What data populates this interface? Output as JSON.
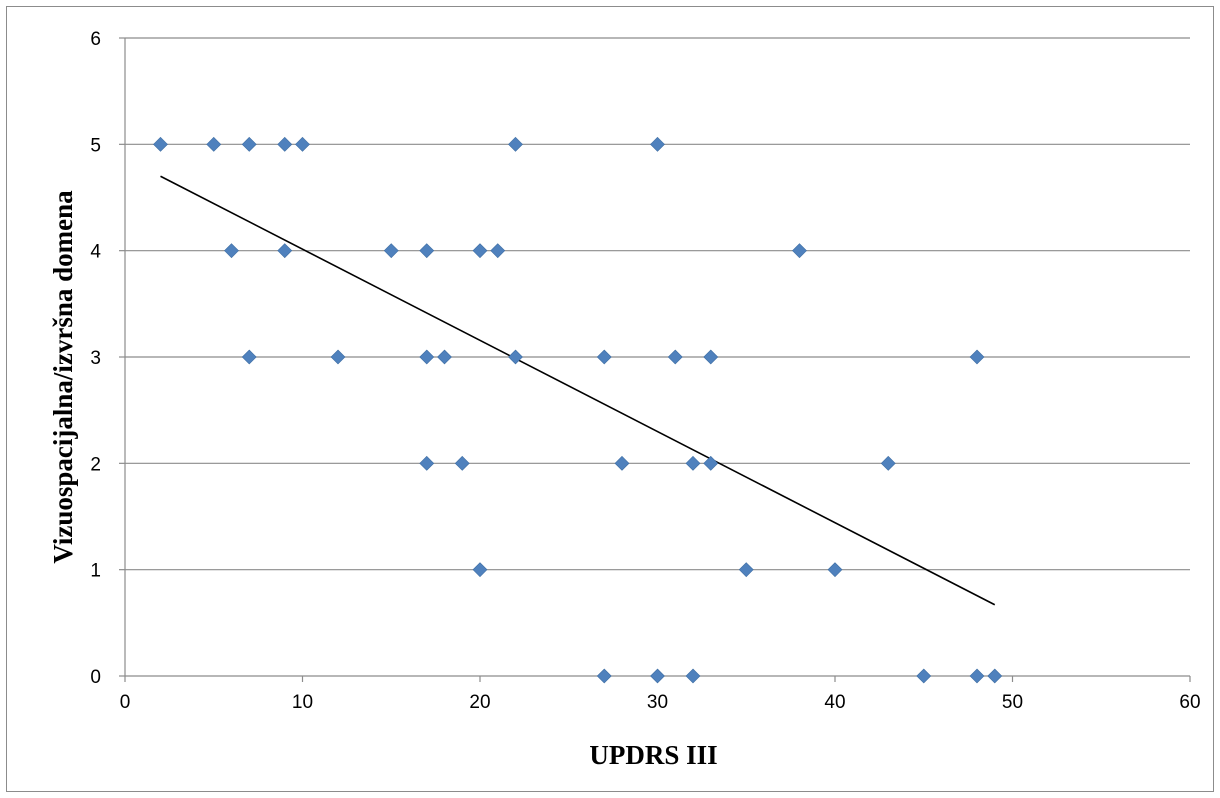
{
  "chart_data": {
    "type": "scatter",
    "title": "",
    "xlabel": "UPDRS III",
    "ylabel": "Vizuospacijalna/izvršna domena",
    "xlim": [
      0,
      60
    ],
    "ylim": [
      0,
      6
    ],
    "x_ticks": [
      "0",
      "10",
      "20",
      "30",
      "40",
      "50",
      "60"
    ],
    "y_ticks": [
      "0",
      "1",
      "2",
      "3",
      "4",
      "5",
      "6"
    ],
    "grid": "horizontal",
    "legend": "none",
    "marker_color": "#4f81bd",
    "trendline_color": "#000000",
    "trendline": {
      "x": [
        2,
        49
      ],
      "y": [
        4.7,
        0.67
      ]
    },
    "series": [
      {
        "points": [
          [
            2,
            5
          ],
          [
            5,
            5
          ],
          [
            7,
            5
          ],
          [
            9,
            5
          ],
          [
            10,
            5
          ],
          [
            22,
            5
          ],
          [
            30,
            5
          ],
          [
            6,
            4
          ],
          [
            9,
            4
          ],
          [
            15,
            4
          ],
          [
            17,
            4
          ],
          [
            20,
            4
          ],
          [
            21,
            4
          ],
          [
            38,
            4
          ],
          [
            7,
            3
          ],
          [
            12,
            3
          ],
          [
            17,
            3
          ],
          [
            18,
            3
          ],
          [
            22,
            3
          ],
          [
            27,
            3
          ],
          [
            31,
            3
          ],
          [
            33,
            3
          ],
          [
            48,
            3
          ],
          [
            17,
            2
          ],
          [
            19,
            2
          ],
          [
            28,
            2
          ],
          [
            32,
            2
          ],
          [
            33,
            2
          ],
          [
            43,
            2
          ],
          [
            20,
            1
          ],
          [
            35,
            1
          ],
          [
            40,
            1
          ],
          [
            27,
            0
          ],
          [
            30,
            0
          ],
          [
            32,
            0
          ],
          [
            45,
            0
          ],
          [
            48,
            0
          ],
          [
            49,
            0
          ]
        ]
      }
    ]
  }
}
